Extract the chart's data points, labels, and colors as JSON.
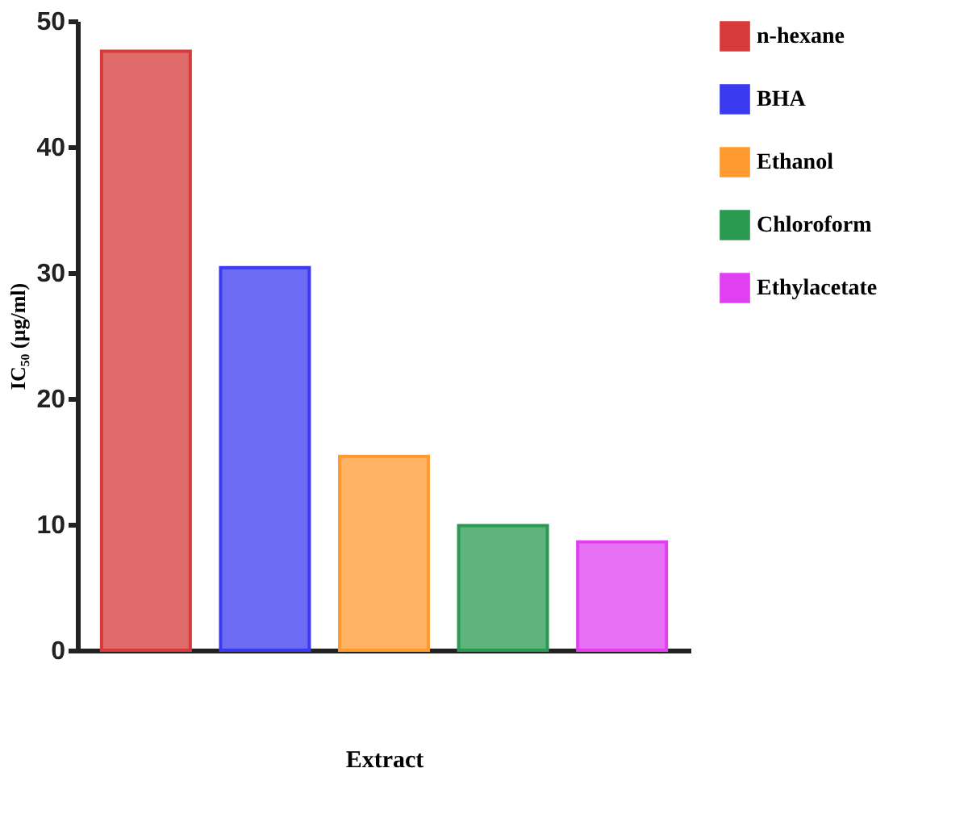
{
  "chart_data": {
    "type": "bar",
    "xlabel": "Extract",
    "ylabel": "IC₅₀ (µg/ml)",
    "categories": [
      null,
      null,
      null,
      null,
      null
    ],
    "series": [
      {
        "name": "n-hexane",
        "color": "#d63a3a",
        "values": [
          47.6,
          null,
          null,
          null,
          null
        ]
      },
      {
        "name": "BHA",
        "color": "#3a3af0",
        "values": [
          null,
          30.4,
          null,
          null,
          null
        ]
      },
      {
        "name": "Ethanol",
        "color": "#ff9a30",
        "values": [
          null,
          null,
          15.4,
          null,
          null
        ]
      },
      {
        "name": "Chloroform",
        "color": "#2a9a50",
        "values": [
          null,
          null,
          null,
          9.9,
          null
        ]
      },
      {
        "name": "Ethylacetate",
        "color": "#e040f0",
        "values": [
          null,
          null,
          null,
          null,
          8.6
        ]
      }
    ],
    "ylim": [
      0,
      50
    ],
    "yticks": [
      0,
      10,
      20,
      30,
      40,
      50
    ],
    "grid": false,
    "legend": "right",
    "tick_labels": "y"
  }
}
